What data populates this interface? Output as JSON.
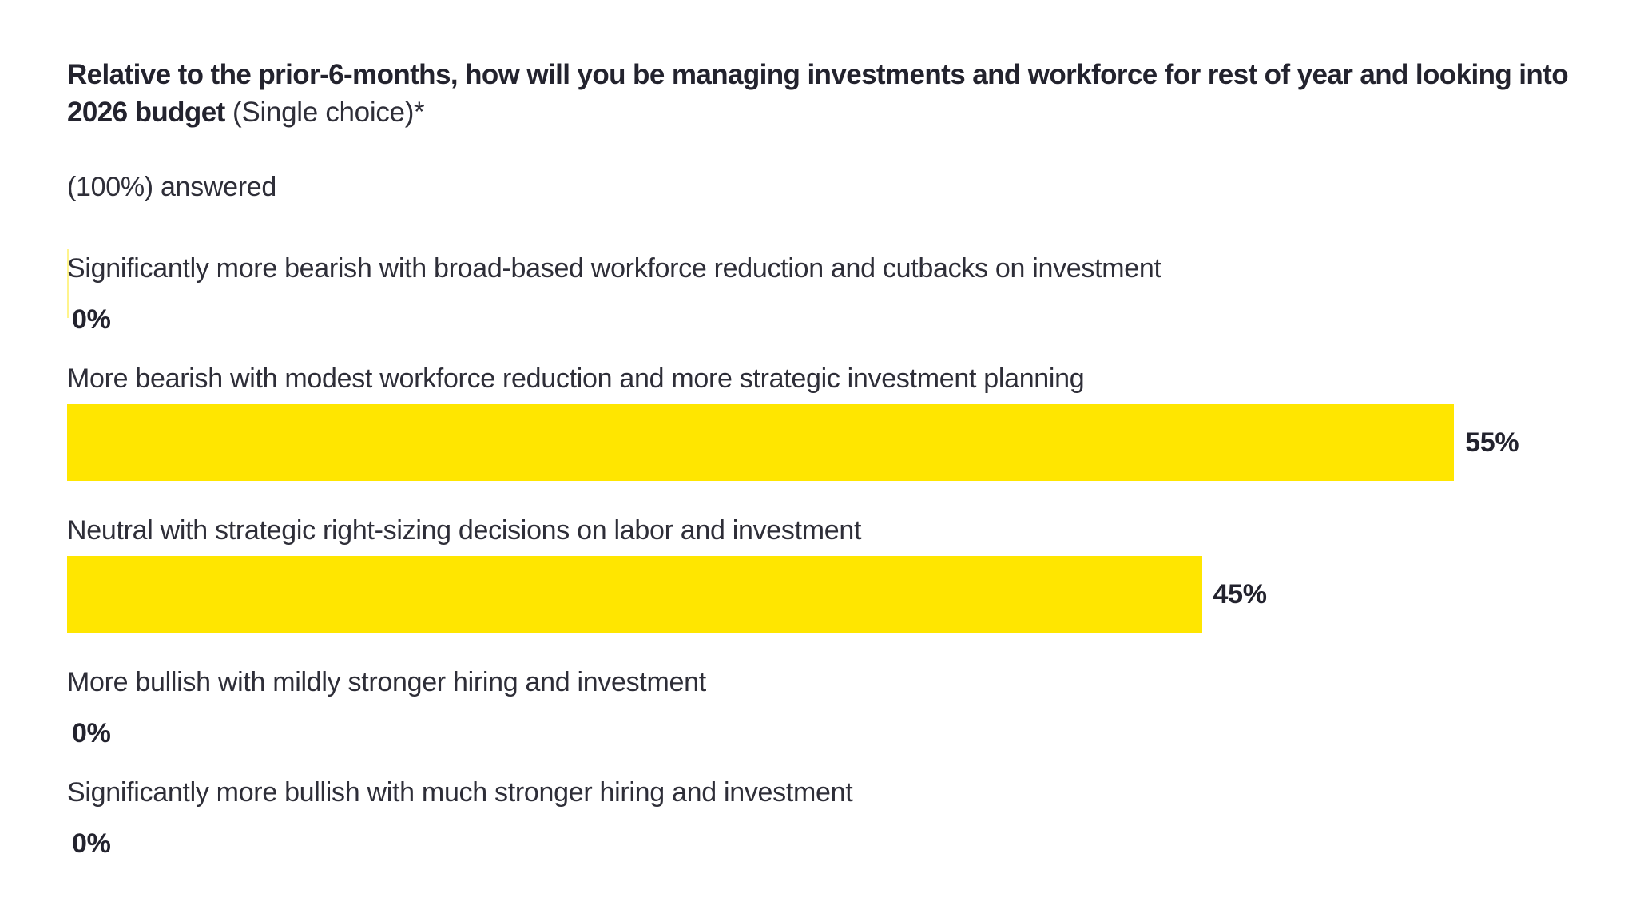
{
  "heading": {
    "question": "Relative to the prior-6-months, how will you be managing investments and workforce for rest of year and looking into 2026 budget",
    "note": " (Single choice)*",
    "answered": "(100%) answered"
  },
  "chart_data": {
    "type": "bar",
    "orientation": "horizontal",
    "title": "Relative to the prior-6-months, how will you be managing investments and workforce for rest of year and looking into 2026 budget (Single choice)*",
    "subtitle": "(100%) answered",
    "categories": [
      "Significantly more bearish with broad-based workforce reduction and cutbacks on investment",
      "More bearish with modest workforce reduction and more strategic investment planning",
      "Neutral with strategic right-sizing decisions on labor and investment",
      "More bullish with mildly stronger hiring and investment",
      "Significantly more bullish with much stronger hiring and investment"
    ],
    "values": [
      0,
      55,
      45,
      0,
      0
    ],
    "value_labels": [
      "0%",
      "55%",
      "45%",
      "0%",
      "0%"
    ],
    "xlabel": "",
    "ylabel": "",
    "xlim": [
      0,
      60
    ],
    "grid": false,
    "legend": false,
    "bar_color": "#FFE600",
    "text_color": "#2E2E38"
  }
}
